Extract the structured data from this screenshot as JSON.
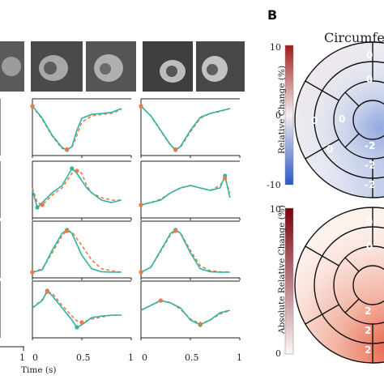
{
  "colors": {
    "model": "#2ab5a5",
    "reference": "#ec7a44",
    "bar_top_a": "#9e1a1c",
    "bar_mid_a": "#f4f0f0",
    "bar_bottom_a": "#2a56c4",
    "bar_top_b": "#7a0010",
    "bar_bottom_b": "#fbf7f5"
  },
  "panel_b_label": "B",
  "time_axis_label": "Time (s)",
  "left_tick_1": "1",
  "chart_data": [
    {
      "type": "line",
      "panel": "curves",
      "x_ticks": [
        "0",
        "0.5",
        "1"
      ],
      "columns": 2,
      "rows": 4,
      "series_note": "",
      "curves": [
        {
          "column": 1,
          "row": 1,
          "x": [
            0,
            0.1,
            0.2,
            0.3,
            0.35,
            0.4,
            0.45,
            0.5,
            0.6,
            0.7,
            0.8,
            0.9
          ],
          "model": [
            0.95,
            0.7,
            0.35,
            0.1,
            0.05,
            0.12,
            0.45,
            0.7,
            0.78,
            0.8,
            0.82,
            0.9
          ],
          "reference": [
            0.95,
            0.68,
            0.33,
            0.08,
            0.06,
            0.1,
            0.35,
            0.62,
            0.75,
            0.78,
            0.8,
            0.88
          ]
        },
        {
          "column": 2,
          "row": 1,
          "x": [
            0,
            0.1,
            0.2,
            0.3,
            0.35,
            0.4,
            0.5,
            0.6,
            0.7,
            0.8,
            0.9
          ],
          "model": [
            0.95,
            0.75,
            0.45,
            0.15,
            0.05,
            0.12,
            0.45,
            0.72,
            0.8,
            0.85,
            0.9
          ],
          "reference": [
            0.95,
            0.75,
            0.44,
            0.14,
            0.06,
            0.1,
            0.42,
            0.7,
            0.8,
            0.84,
            0.9
          ]
        },
        {
          "column": 1,
          "row": 2,
          "x": [
            0,
            0.05,
            0.1,
            0.2,
            0.3,
            0.4,
            0.45,
            0.5,
            0.55,
            0.6,
            0.7,
            0.8,
            0.9
          ],
          "model": [
            0.5,
            0.15,
            0.25,
            0.45,
            0.6,
            0.95,
            0.85,
            0.7,
            0.55,
            0.45,
            0.3,
            0.25,
            0.3
          ],
          "reference": [
            0.55,
            0.25,
            0.2,
            0.4,
            0.55,
            0.85,
            0.9,
            0.85,
            0.6,
            0.45,
            0.35,
            0.3,
            0.3
          ]
        },
        {
          "column": 2,
          "row": 2,
          "x": [
            0,
            0.1,
            0.2,
            0.3,
            0.4,
            0.5,
            0.6,
            0.7,
            0.8,
            0.85,
            0.9
          ],
          "model": [
            0.2,
            0.25,
            0.3,
            0.45,
            0.55,
            0.6,
            0.55,
            0.5,
            0.55,
            0.8,
            0.35
          ],
          "reference": [
            0.2,
            0.25,
            0.32,
            0.45,
            0.55,
            0.6,
            0.55,
            0.5,
            0.6,
            0.75,
            0.45
          ]
        },
        {
          "column": 1,
          "row": 3,
          "x": [
            0,
            0.1,
            0.2,
            0.3,
            0.35,
            0.4,
            0.5,
            0.6,
            0.7,
            0.8,
            0.9
          ],
          "model": [
            0.05,
            0.1,
            0.5,
            0.85,
            0.92,
            0.85,
            0.4,
            0.12,
            0.06,
            0.05,
            0.05
          ],
          "reference": [
            0.05,
            0.12,
            0.45,
            0.8,
            0.9,
            0.88,
            0.6,
            0.3,
            0.12,
            0.08,
            0.05
          ]
        },
        {
          "column": 2,
          "row": 3,
          "x": [
            0,
            0.1,
            0.2,
            0.3,
            0.35,
            0.4,
            0.5,
            0.6,
            0.7,
            0.8,
            0.9
          ],
          "model": [
            0.05,
            0.15,
            0.5,
            0.85,
            0.92,
            0.85,
            0.45,
            0.12,
            0.06,
            0.05,
            0.05
          ],
          "reference": [
            0.05,
            0.15,
            0.48,
            0.82,
            0.9,
            0.86,
            0.5,
            0.18,
            0.08,
            0.06,
            0.05
          ]
        },
        {
          "column": 1,
          "row": 4,
          "x": [
            0,
            0.1,
            0.15,
            0.2,
            0.3,
            0.4,
            0.45,
            0.5,
            0.6,
            0.7,
            0.8,
            0.9
          ],
          "model": [
            0.55,
            0.7,
            0.9,
            0.8,
            0.55,
            0.3,
            0.15,
            0.2,
            0.35,
            0.38,
            0.4,
            0.4
          ],
          "reference": [
            0.55,
            0.72,
            0.88,
            0.85,
            0.6,
            0.38,
            0.28,
            0.25,
            0.32,
            0.36,
            0.4,
            0.4
          ]
        },
        {
          "column": 2,
          "row": 4,
          "x": [
            0,
            0.1,
            0.2,
            0.3,
            0.4,
            0.5,
            0.6,
            0.7,
            0.8,
            0.9
          ],
          "model": [
            0.5,
            0.6,
            0.7,
            0.65,
            0.55,
            0.3,
            0.2,
            0.3,
            0.45,
            0.5
          ],
          "reference": [
            0.5,
            0.6,
            0.7,
            0.66,
            0.52,
            0.32,
            0.22,
            0.3,
            0.42,
            0.5
          ]
        }
      ]
    },
    {
      "type": "heatmap",
      "panel": "polar-map-top",
      "title": "Circumfere",
      "colorbar_label": "Relative Change (%)",
      "colorbar_ticks": [
        "10",
        "0",
        "-10"
      ],
      "range": [
        -10,
        10
      ],
      "segment_labels": [
        "0",
        "0",
        "0",
        "0",
        "0",
        "-2",
        "-2",
        "-2"
      ]
    },
    {
      "type": "heatmap",
      "panel": "polar-map-bottom",
      "colorbar_label": "Absolute Relative Change (%)",
      "colorbar_ticks": [
        "10",
        "0"
      ],
      "range": [
        0,
        10
      ],
      "segment_labels": [
        "0",
        "0",
        "2",
        "2",
        "2"
      ]
    }
  ]
}
